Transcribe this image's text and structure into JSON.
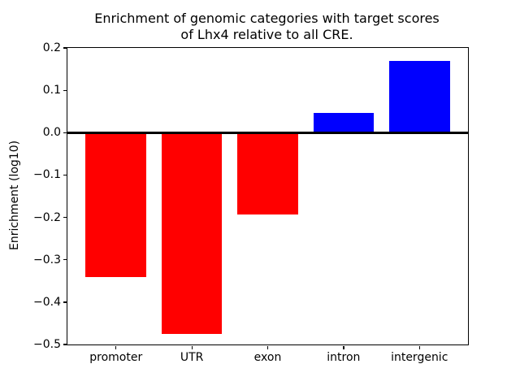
{
  "figure": {
    "title": "Enrichment of genomic categories with target scores\nof Lhx4 relative to all CRE.",
    "ylabel": "Enrichment (log10)"
  },
  "chart_data": {
    "type": "bar",
    "title": "Enrichment of genomic categories with target scores of Lhx4 relative to all CRE.",
    "xlabel": "",
    "ylabel": "Enrichment (log10)",
    "categories": [
      "promoter",
      "UTR",
      "exon",
      "intron",
      "intergenic"
    ],
    "values": [
      -0.34,
      -0.475,
      -0.193,
      0.047,
      0.17
    ],
    "bar_colors": [
      "#ff0000",
      "#ff0000",
      "#ff0000",
      "#0000ff",
      "#0000ff"
    ],
    "negative_color": "#ff0000",
    "positive_color": "#0000ff",
    "ylim": [
      -0.5,
      0.2
    ],
    "yticks": [
      0.2,
      0.1,
      0.0,
      -0.1,
      -0.2,
      -0.3,
      -0.4,
      -0.5
    ],
    "bar_width_fraction": 0.8,
    "zero_line": true,
    "grid": false,
    "legend": null
  }
}
